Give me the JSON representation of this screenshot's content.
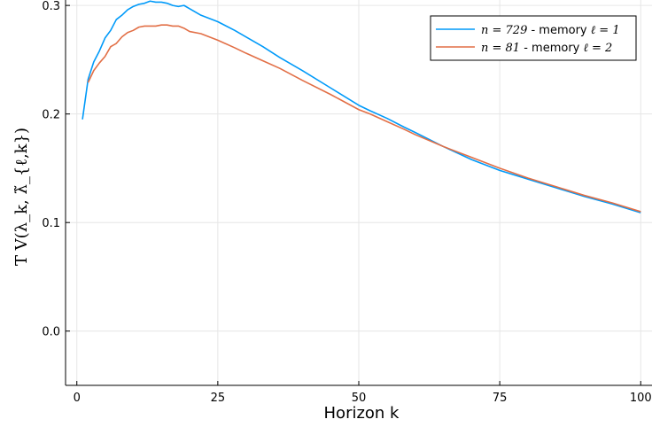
{
  "chart_data": {
    "type": "line",
    "title": "",
    "xlabel": "Horizon k",
    "ylabel": "T V(λ_k, λ̃_{ℓ,k})",
    "xlim": [
      -2,
      102
    ],
    "ylim": [
      -0.05,
      0.305
    ],
    "xticks": [
      0,
      25,
      50,
      75,
      100
    ],
    "yticks": [
      0.0,
      0.1,
      0.2,
      0.3
    ],
    "xtick_labels": [
      "0",
      "25",
      "50",
      "75",
      "100"
    ],
    "ytick_labels": [
      "0.0",
      "0.1",
      "0.2",
      "0.3"
    ],
    "grid": true,
    "legend_position": "top-right",
    "series": [
      {
        "name": "n = 729 - memory ℓ = 1",
        "legend_math": "n = 729",
        "legend_text": " - memory ",
        "legend_math2": "ℓ = 1",
        "color": "#009af9",
        "x": [
          1,
          2,
          3,
          4,
          5,
          6,
          7,
          8,
          9,
          10,
          11,
          12,
          13,
          14,
          15,
          16,
          17,
          18,
          19,
          20,
          22,
          25,
          28,
          30,
          33,
          36,
          40,
          45,
          50,
          52,
          55,
          58,
          60,
          65,
          70,
          75,
          80,
          85,
          90,
          95,
          100
        ],
        "y": [
          0.195,
          0.232,
          0.248,
          0.258,
          0.27,
          0.277,
          0.287,
          0.291,
          0.296,
          0.299,
          0.301,
          0.302,
          0.304,
          0.303,
          0.303,
          0.302,
          0.3,
          0.299,
          0.3,
          0.297,
          0.291,
          0.285,
          0.277,
          0.271,
          0.262,
          0.252,
          0.24,
          0.224,
          0.208,
          0.203,
          0.196,
          0.188,
          0.183,
          0.17,
          0.158,
          0.148,
          0.14,
          0.132,
          0.124,
          0.117,
          0.109
        ]
      },
      {
        "name": "n = 81 - memory ℓ = 2",
        "legend_math": "n = 81",
        "legend_text": " - memory ",
        "legend_math2": "ℓ = 2",
        "color": "#e26f46",
        "x": [
          2,
          3,
          4,
          5,
          6,
          7,
          8,
          9,
          10,
          11,
          12,
          13,
          14,
          15,
          16,
          17,
          18,
          19,
          20,
          22,
          25,
          28,
          30,
          33,
          36,
          40,
          45,
          50,
          52,
          55,
          58,
          60,
          65,
          70,
          75,
          80,
          85,
          90,
          95,
          100
        ],
        "y": [
          0.229,
          0.24,
          0.247,
          0.253,
          0.262,
          0.265,
          0.271,
          0.275,
          0.277,
          0.28,
          0.281,
          0.281,
          0.281,
          0.282,
          0.282,
          0.281,
          0.281,
          0.279,
          0.276,
          0.274,
          0.268,
          0.261,
          0.256,
          0.249,
          0.242,
          0.231,
          0.218,
          0.204,
          0.2,
          0.193,
          0.186,
          0.181,
          0.17,
          0.16,
          0.15,
          0.141,
          0.133,
          0.125,
          0.118,
          0.11
        ]
      }
    ]
  }
}
